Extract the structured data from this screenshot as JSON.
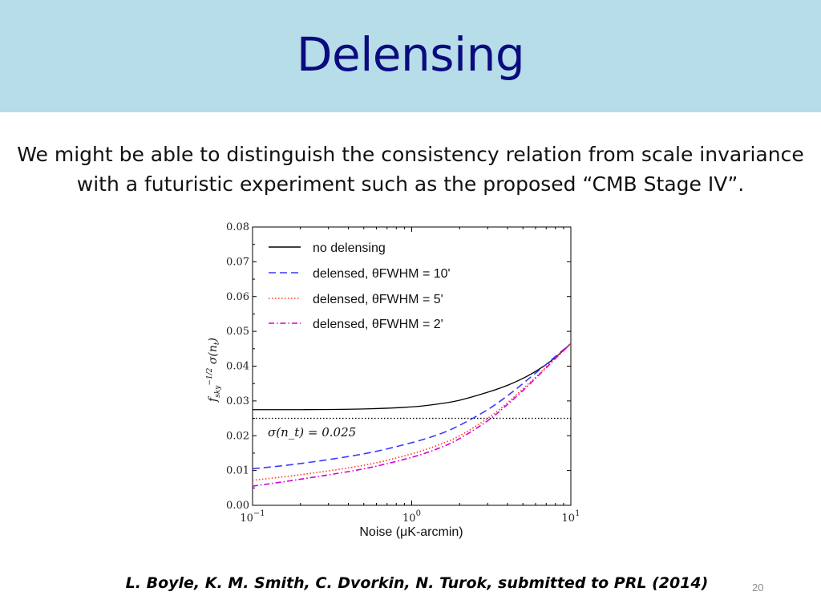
{
  "slide": {
    "title": "Delensing",
    "body_lines": [
      "We might be able to distinguish the consistency relation from scale invariance",
      "with a futuristic experiment such as the proposed “CMB Stage IV”."
    ],
    "citation": "L. Boyle, K. M. Smith, C. Dvorkin, N. Turok, submitted to PRL (2014)",
    "page_number": "20",
    "colors": {
      "title_band": "#b7dde8",
      "title_text": "#0b0b80"
    }
  },
  "chart_data": {
    "type": "line",
    "xlabel": "Noise (μK-arcmin)",
    "ylabel": "f_sky^{-1/2} σ(n_t)",
    "x_scale": "log",
    "xlim": [
      0.1,
      10
    ],
    "ylim": [
      0,
      0.08
    ],
    "x_ticks": [
      "10−1",
      "100",
      "101"
    ],
    "y_ticks": [
      "0.00",
      "0.01",
      "0.02",
      "0.03",
      "0.04",
      "0.05",
      "0.06",
      "0.07",
      "0.08"
    ],
    "legend_position": "upper-left",
    "grid": false,
    "series": [
      {
        "name": "no delensing",
        "color": "#000000",
        "style": "solid",
        "x": [
          0.1,
          0.2,
          0.5,
          1.0,
          1.5,
          2.0,
          3.0,
          4.0,
          5.0,
          6.0,
          7.0,
          8.0,
          10.0
        ],
        "y": [
          0.0275,
          0.0275,
          0.0277,
          0.0283,
          0.0292,
          0.0302,
          0.0325,
          0.0345,
          0.0365,
          0.0385,
          0.0405,
          0.0425,
          0.0465
        ]
      },
      {
        "name": "delensed, θFWHM = 10'",
        "color": "#3a3aff",
        "style": "dashed",
        "x": [
          0.1,
          0.2,
          0.5,
          1.0,
          1.5,
          2.0,
          3.0,
          4.0,
          5.0,
          6.0,
          7.0,
          8.0,
          10.0
        ],
        "y": [
          0.0105,
          0.012,
          0.0148,
          0.018,
          0.0205,
          0.023,
          0.0275,
          0.0315,
          0.035,
          0.038,
          0.0405,
          0.0428,
          0.0465
        ]
      },
      {
        "name": "delensed, θFWHM = 5'",
        "color": "#ff3b1f",
        "style": "dotted",
        "x": [
          0.1,
          0.2,
          0.5,
          1.0,
          1.5,
          2.0,
          3.0,
          4.0,
          5.0,
          6.0,
          7.0,
          8.0,
          10.0
        ],
        "y": [
          0.0072,
          0.0088,
          0.0115,
          0.0148,
          0.0175,
          0.02,
          0.025,
          0.0295,
          0.0335,
          0.0368,
          0.0398,
          0.0425,
          0.0465
        ]
      },
      {
        "name": "delensed, θFWHM = 2'",
        "color": "#d400d4",
        "style": "dashdot",
        "x": [
          0.1,
          0.2,
          0.5,
          1.0,
          1.5,
          2.0,
          3.0,
          4.0,
          5.0,
          6.0,
          7.0,
          8.0,
          10.0
        ],
        "y": [
          0.0055,
          0.0075,
          0.0105,
          0.0138,
          0.0165,
          0.0192,
          0.0243,
          0.029,
          0.033,
          0.0365,
          0.0395,
          0.0422,
          0.0465
        ]
      }
    ],
    "reference_line": {
      "y": 0.025,
      "label": "σ(n_t) = 0.025",
      "style": "dotted",
      "color": "#000000"
    }
  }
}
